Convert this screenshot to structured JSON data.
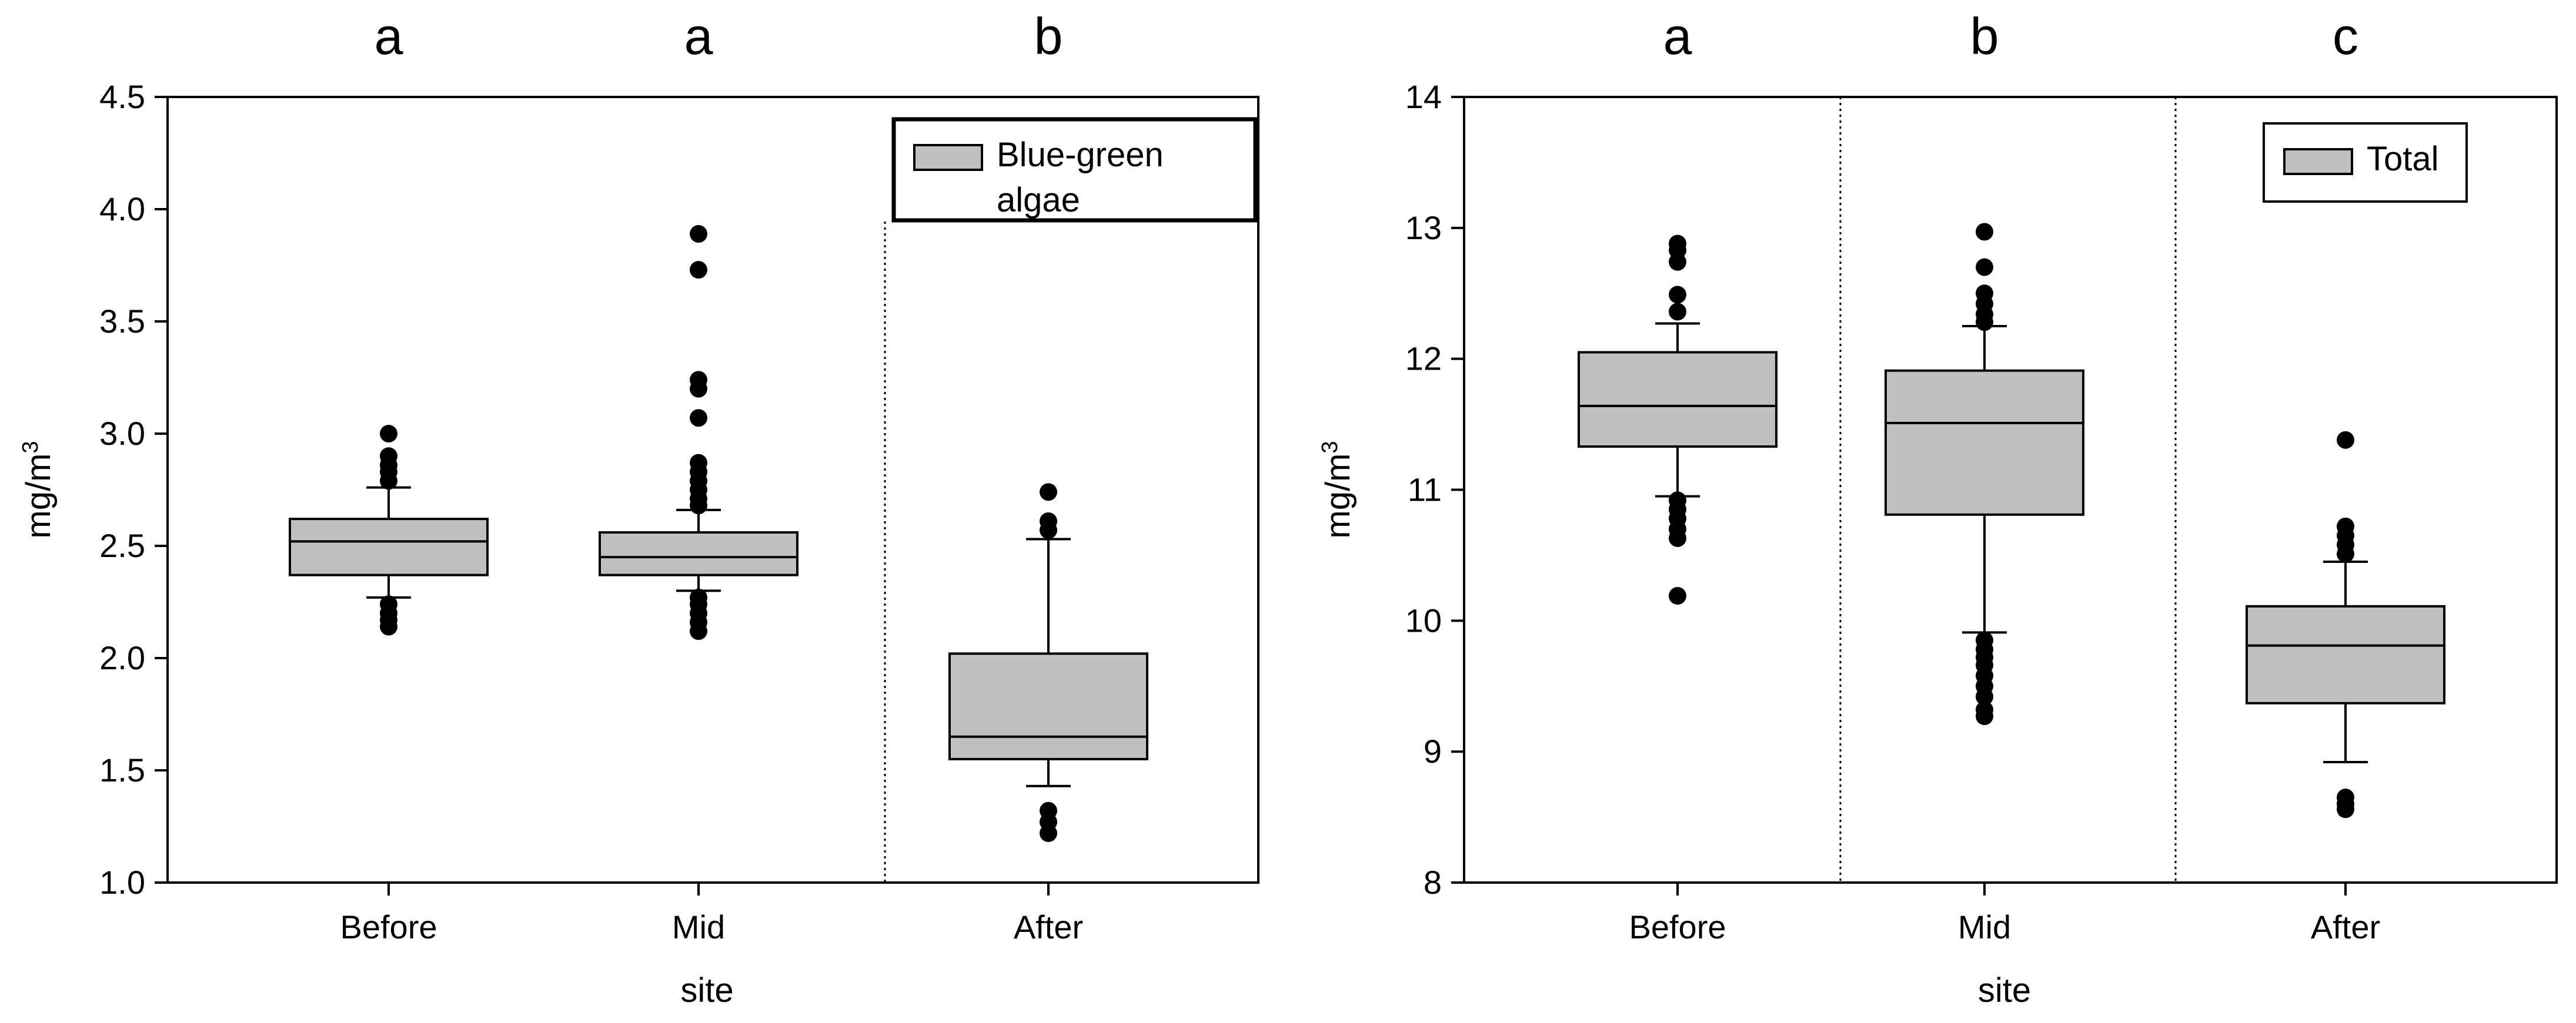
{
  "chart_data": [
    {
      "type": "box",
      "title": "",
      "xlabel": "site",
      "ylabel": "mg/m",
      "ylabel_superscript": "3",
      "categories": [
        "Before",
        "Mid",
        "After"
      ],
      "significance_letters": [
        "a",
        "a",
        "b"
      ],
      "ylim": [
        1.0,
        4.5
      ],
      "yticks": [
        "1.0",
        "1.5",
        "2.0",
        "2.5",
        "3.0",
        "3.5",
        "4.0",
        "4.5"
      ],
      "ytick_values": [
        1.0,
        1.5,
        2.0,
        2.5,
        3.0,
        3.5,
        4.0,
        4.5
      ],
      "legend": {
        "label": "Blue-green algae",
        "label_lines": [
          "Blue-green",
          "algae"
        ],
        "placement": "top-right"
      },
      "divider_after_category_index": [
        1
      ],
      "box_color": "#c0c0c0",
      "series": [
        {
          "category": "Before",
          "q1": 2.37,
          "median": 2.52,
          "q3": 2.62,
          "whisker_low": 2.27,
          "whisker_high": 2.76,
          "outliers": [
            3.0,
            2.9,
            2.86,
            2.83,
            2.79,
            2.24,
            2.2,
            2.17,
            2.14
          ]
        },
        {
          "category": "Mid",
          "q1": 2.37,
          "median": 2.45,
          "q3": 2.56,
          "whisker_low": 2.3,
          "whisker_high": 2.66,
          "outliers": [
            3.89,
            3.73,
            3.24,
            3.2,
            3.07,
            2.87,
            2.83,
            2.79,
            2.75,
            2.71,
            2.68,
            2.27,
            2.24,
            2.2,
            2.16,
            2.12
          ]
        },
        {
          "category": "After",
          "q1": 1.55,
          "median": 1.65,
          "q3": 2.02,
          "whisker_low": 1.43,
          "whisker_high": 2.53,
          "outliers": [
            2.74,
            2.61,
            2.57,
            1.32,
            1.27,
            1.22
          ]
        }
      ]
    },
    {
      "type": "box",
      "title": "",
      "xlabel": "site",
      "ylabel": "mg/m",
      "ylabel_superscript": "3",
      "categories": [
        "Before",
        "Mid",
        "After"
      ],
      "significance_letters": [
        "a",
        "b",
        "c"
      ],
      "ylim": [
        8,
        14
      ],
      "yticks": [
        "8",
        "9",
        "10",
        "11",
        "12",
        "13",
        "14"
      ],
      "ytick_values": [
        8,
        9,
        10,
        11,
        12,
        13,
        14
      ],
      "legend": {
        "label": "Total",
        "label_lines": [
          "Total"
        ],
        "placement": "top-right"
      },
      "divider_after_category_index": [
        0,
        1
      ],
      "box_color": "#c0c0c0",
      "series": [
        {
          "category": "Before",
          "q1": 11.33,
          "median": 11.64,
          "q3": 12.05,
          "whisker_low": 10.95,
          "whisker_high": 12.27,
          "outliers": [
            12.88,
            12.83,
            12.74,
            12.49,
            12.36,
            10.92,
            10.85,
            10.78,
            10.7,
            10.63,
            10.19
          ]
        },
        {
          "category": "Mid",
          "q1": 10.81,
          "median": 11.51,
          "q3": 11.91,
          "whisker_low": 9.91,
          "whisker_high": 12.25,
          "outliers": [
            12.97,
            12.7,
            12.5,
            12.42,
            12.34,
            12.28,
            9.85,
            9.78,
            9.72,
            9.66,
            9.58,
            9.5,
            9.42,
            9.32,
            9.27
          ]
        },
        {
          "category": "After",
          "q1": 9.37,
          "median": 9.81,
          "q3": 10.11,
          "whisker_low": 8.92,
          "whisker_high": 10.45,
          "outliers": [
            11.38,
            10.72,
            10.65,
            10.58,
            10.51,
            8.65,
            8.6,
            8.56
          ]
        }
      ]
    }
  ]
}
